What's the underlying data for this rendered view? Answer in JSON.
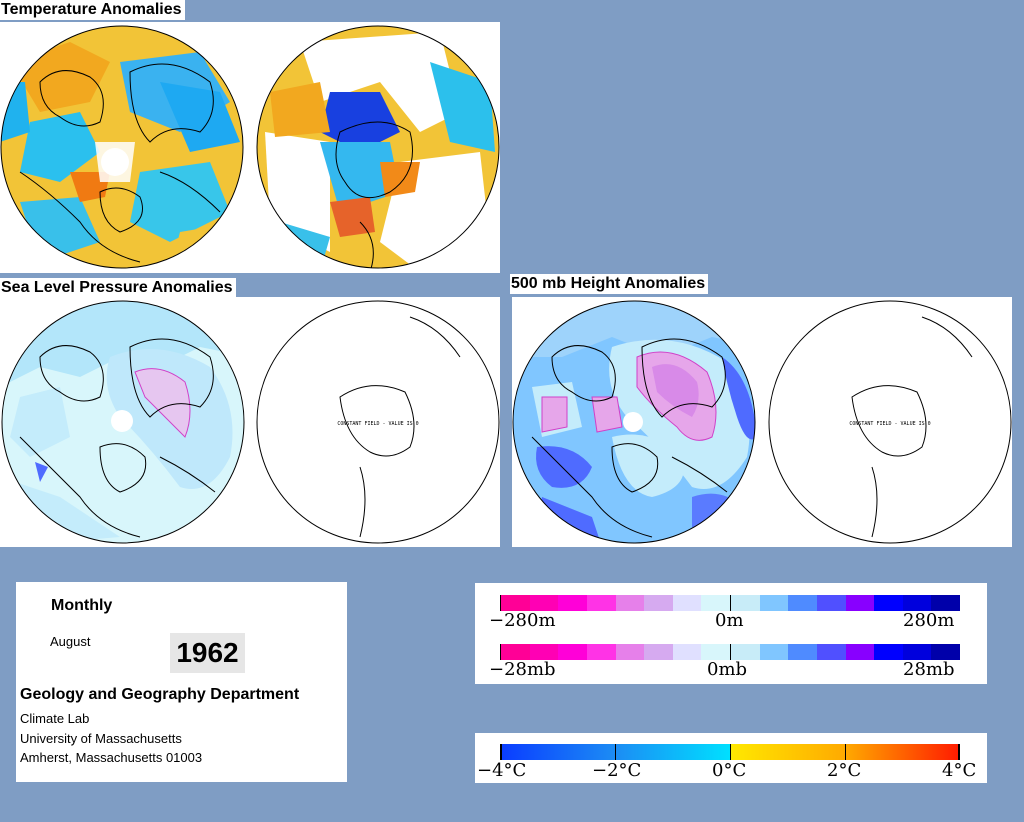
{
  "colors": {
    "background": "#7f9dc4",
    "neg_strong": "#ff00c8",
    "neg_mid": "#ff40e0",
    "neg_light": "#e6a6ea",
    "neutral": "#d8f6fb",
    "pos_light": "#80c6ff",
    "pos_mid": "#4f6bff",
    "pos_strong": "#0000dd",
    "temp_cold": "#0a4bff",
    "temp_cool": "#1cb4f0",
    "temp_neutral": "#00e0ff",
    "temp_warm": "#ffd800",
    "temp_hot": "#ff2a00"
  },
  "panels": {
    "temperature": {
      "title": "Temperature Anomalies"
    },
    "pressure": {
      "title": "Sea Level Pressure Anomalies",
      "constant_text": "CONSTANT FIELD - VALUE IS 0"
    },
    "height": {
      "title": "500 mb Height Anomalies",
      "constant_text": "CONSTANT FIELD - VALUE IS 0"
    }
  },
  "info": {
    "period": "Monthly",
    "month": "August",
    "year": "1962",
    "department": "Geology and Geography Department",
    "lab": "Climate Lab",
    "university": "University of Massachusetts",
    "address": "Amherst, Massachusetts 01003"
  },
  "legend_height": {
    "ticks": [
      "−280m",
      "0m",
      "280m"
    ],
    "colors": [
      "#ff0096",
      "#ff00b4",
      "#ff00d8",
      "#ff33e6",
      "#e680ea",
      "#d6aaf0",
      "#e0e0ff",
      "#d8f6fb",
      "#c8ecf8",
      "#80c6ff",
      "#4f8bff",
      "#5050ff",
      "#8800ff",
      "#0000ff",
      "#0000dd",
      "#0000aa"
    ]
  },
  "legend_pressure": {
    "ticks": [
      "−28mb",
      "0mb",
      "28mb"
    ]
  },
  "legend_temp": {
    "ticks": [
      "−4°C",
      "−2°C",
      "0°C",
      "2°C",
      "4°C"
    ]
  }
}
